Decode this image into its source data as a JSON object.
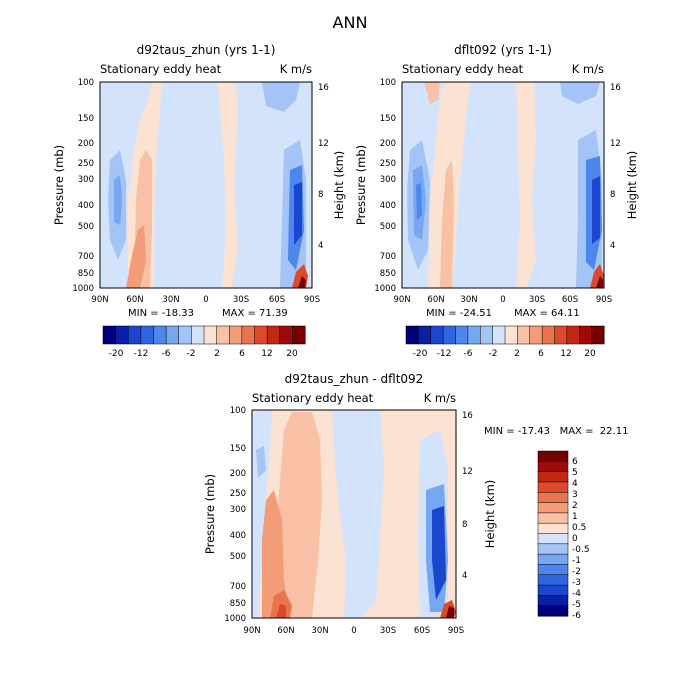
{
  "figure": {
    "main_title": "ANN",
    "title_color": "#777777"
  },
  "colors": {
    "diverging": [
      "#00007a",
      "#0a1ea8",
      "#1a46d0",
      "#2f66e0",
      "#4d86ec",
      "#77a6f2",
      "#a4c3f6",
      "#d2e3fb",
      "#fbe2d2",
      "#f8c0a4",
      "#f29c78",
      "#ea7450",
      "#dc4a2c",
      "#c42616",
      "#9e0a08",
      "#760000"
    ]
  },
  "chart_data": [
    {
      "type": "heatmap",
      "title": "d92taus_zhun (yrs 1-1)",
      "subtitle_left": "Stationary eddy heat",
      "subtitle_right": "K m/s",
      "ylabel": "Pressure (mb)",
      "ylabel_right": "Height (km)",
      "x_ticks": [
        "90N",
        "60N",
        "30N",
        "0",
        "30S",
        "60S",
        "90S"
      ],
      "y_ticks": [
        "100",
        "150",
        "200",
        "250",
        "300",
        "400",
        "500",
        "700",
        "850",
        "1000"
      ],
      "y_right_ticks": [
        "16",
        "12",
        "8",
        "4"
      ],
      "min_label": "MIN = -18.33",
      "max_label": "MAX =  71.39",
      "colorbar_labels": [
        "-20",
        "-12",
        "-6",
        "-2",
        "2",
        "6",
        "12",
        "20"
      ],
      "ylim": [
        1000,
        100
      ],
      "xlim": [
        90,
        -90
      ]
    },
    {
      "type": "heatmap",
      "title": "dflt092 (yrs 1-1)",
      "subtitle_left": "Stationary eddy heat",
      "subtitle_right": "K m/s",
      "ylabel": "Pressure (mb)",
      "ylabel_right": "Height (km)",
      "x_ticks": [
        "90N",
        "60N",
        "30N",
        "0",
        "30S",
        "60S",
        "90S"
      ],
      "y_ticks": [
        "100",
        "150",
        "200",
        "250",
        "300",
        "400",
        "500",
        "700",
        "850",
        "1000"
      ],
      "y_right_ticks": [
        "16",
        "12",
        "8",
        "4"
      ],
      "min_label": "MIN = -24.51",
      "max_label": "MAX =  64.11",
      "colorbar_labels": [
        "-20",
        "-12",
        "-6",
        "-2",
        "2",
        "6",
        "12",
        "20"
      ],
      "ylim": [
        1000,
        100
      ],
      "xlim": [
        90,
        -90
      ]
    },
    {
      "type": "heatmap",
      "title": "d92taus_zhun - dflt092",
      "subtitle_left": "Stationary eddy heat",
      "subtitle_right": "K m/s",
      "ylabel": "Pressure (mb)",
      "ylabel_right": "Height (km)",
      "x_ticks": [
        "90N",
        "60N",
        "30N",
        "0",
        "30S",
        "60S",
        "90S"
      ],
      "y_ticks": [
        "100",
        "150",
        "200",
        "250",
        "300",
        "400",
        "500",
        "700",
        "850",
        "1000"
      ],
      "y_right_ticks": [
        "16",
        "12",
        "8",
        "4"
      ],
      "minmax_label": "MIN = -17.43   MAX =  22.11",
      "colorbar_labels": [
        "6",
        "5",
        "4",
        "3",
        "2",
        "1",
        "0.5",
        "0",
        "-0.5",
        "-1",
        "-2",
        "-3",
        "-4",
        "-5",
        "-6"
      ],
      "ylim": [
        1000,
        100
      ],
      "xlim": [
        90,
        -90
      ]
    }
  ]
}
